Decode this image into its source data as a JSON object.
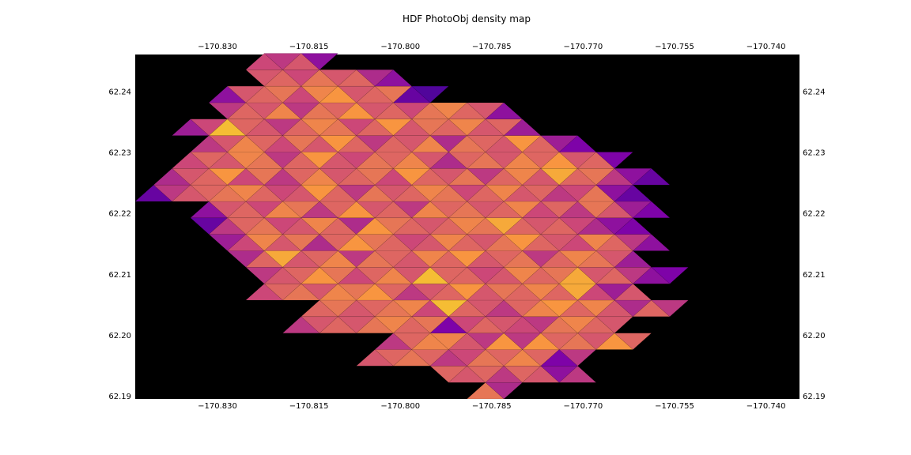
{
  "chart_data": {
    "type": "heatmap",
    "title": "HDF PhotoObj density map",
    "xlabel": "",
    "ylabel": "",
    "xlim": [
      -170.8435,
      -170.7345
    ],
    "ylim": [
      62.1895,
      62.246
    ],
    "x_ticks": [
      -170.83,
      -170.815,
      -170.8,
      -170.785,
      -170.77,
      -170.755,
      -170.74
    ],
    "x_tick_labels": [
      "−170.830",
      "−170.815",
      "−170.800",
      "−170.785",
      "−170.770",
      "−170.755",
      "−170.740"
    ],
    "y_ticks": [
      62.19,
      62.2,
      62.21,
      62.22,
      62.23,
      62.24
    ],
    "y_tick_labels": [
      "62.19",
      "62.20",
      "62.21",
      "62.22",
      "62.23",
      "62.24"
    ],
    "background": "#000000",
    "colormap": "plasma",
    "grid": false,
    "legend": "none",
    "mesh": {
      "description": "triangular mesh; each row pair of triangles with relative density 0-1",
      "x0": -170.8435,
      "dx": 0.00605,
      "y0": 62.1895,
      "dy": 0.0027,
      "rows": [
        {
          "start": 18,
          "values": [
            0.65,
            0.4
          ]
        },
        {
          "start": 15,
          "values": [
            0.6,
            0.55,
            0.6,
            0.45,
            0.6,
            0.55,
            0.3,
            0.45
          ]
        },
        {
          "start": 12,
          "values": [
            0.55,
            0.6,
            0.65,
            0.6,
            0.45,
            0.5,
            0.65,
            0.6,
            0.7,
            0.6,
            0.25,
            0.45
          ]
        },
        {
          "start": 12,
          "values": [
            0.45,
            0.6,
            0.7,
            0.7,
            0.55,
            0.45,
            0.75,
            0.45,
            0.75,
            0.6,
            0.65,
            0.55,
            0.75,
            0.6
          ]
        },
        {
          "start": 8,
          "values": [
            0.45,
            0.55,
            0.6,
            0.55,
            0.65,
            0.7,
            0.6,
            0.65,
            0.25,
            0.5,
            0.6,
            0.55,
            0.5,
            0.45,
            0.65,
            0.7,
            0.6,
            0.55
          ]
        },
        {
          "start": 8,
          "values": [
            0.6,
            0.65,
            0.55,
            0.6,
            0.65,
            0.7,
            0.5,
            0.85,
            0.6,
            0.55,
            0.45,
            0.6,
            0.7,
            0.75,
            0.6,
            0.7,
            0.55,
            0.4,
            0.6,
            0.45
          ]
        },
        {
          "start": 6,
          "values": [
            0.5,
            0.6,
            0.65,
            0.55,
            0.7,
            0.65,
            0.75,
            0.6,
            0.45,
            0.55,
            0.6,
            0.75,
            0.55,
            0.65,
            0.6,
            0.7,
            0.6,
            0.8,
            0.5,
            0.35,
            0.55
          ]
        },
        {
          "start": 5,
          "values": [
            0.45,
            0.55,
            0.6,
            0.75,
            0.65,
            0.5,
            0.6,
            0.7,
            0.55,
            0.85,
            0.6,
            0.6,
            0.5,
            0.55,
            0.7,
            0.6,
            0.65,
            0.8,
            0.55,
            0.6,
            0.45,
            0.3,
            0.25
          ]
        },
        {
          "start": 5,
          "values": [
            0.4,
            0.6,
            0.8,
            0.55,
            0.6,
            0.7,
            0.45,
            0.65,
            0.6,
            0.55,
            0.7,
            0.6,
            0.75,
            0.55,
            0.6,
            0.65,
            0.45,
            0.6,
            0.7,
            0.65,
            0.55,
            0.35
          ]
        },
        {
          "start": 3,
          "values": [
            0.35,
            0.5,
            0.7,
            0.55,
            0.65,
            0.4,
            0.6,
            0.75,
            0.65,
            0.6,
            0.5,
            0.55,
            0.7,
            0.6,
            0.55,
            0.65,
            0.75,
            0.6,
            0.55,
            0.5,
            0.7,
            0.6,
            0.45,
            0.3
          ]
        },
        {
          "start": 3,
          "values": [
            0.2,
            0.45,
            0.6,
            0.65,
            0.5,
            0.55,
            0.7,
            0.6,
            0.4,
            0.75,
            0.65,
            0.6,
            0.55,
            0.6,
            0.7,
            0.65,
            0.8,
            0.6,
            0.55,
            0.6,
            0.5,
            0.4,
            0.3,
            0.25
          ]
        },
        {
          "start": 2,
          "values": [
            0.3,
            0.55,
            0.6,
            0.5,
            0.7,
            0.65,
            0.45,
            0.6,
            0.75,
            0.55,
            0.6,
            0.45,
            0.7,
            0.6,
            0.65,
            0.55,
            0.6,
            0.7,
            0.5,
            0.6,
            0.45,
            0.65,
            0.55,
            0.35,
            0.25
          ]
        },
        {
          "start": 0,
          "values": [
            0.2,
            0.45,
            0.55,
            0.6,
            0.65,
            0.7,
            0.6,
            0.5,
            0.55,
            0.75,
            0.6,
            0.45,
            0.65,
            0.55,
            0.6,
            0.7,
            0.65,
            0.5,
            0.6,
            0.7,
            0.55,
            0.6,
            0.45,
            0.5,
            0.65,
            0.3,
            0.2
          ]
        },
        {
          "start": 0,
          "values": [
            0.4,
            0.55,
            0.6,
            0.75,
            0.5,
            0.65,
            0.45,
            0.6,
            0.7,
            0.55,
            0.6,
            0.65,
            0.5,
            0.75,
            0.6,
            0.55,
            0.65,
            0.45,
            0.6,
            0.7,
            0.55,
            0.8,
            0.6,
            0.65,
            0.45,
            0.3,
            0.2
          ]
        },
        {
          "start": 2,
          "values": [
            0.5,
            0.6,
            0.55,
            0.7,
            0.65,
            0.45,
            0.6,
            0.75,
            0.55,
            0.5,
            0.65,
            0.6,
            0.7,
            0.55,
            0.4,
            0.6,
            0.65,
            0.55,
            0.7,
            0.6,
            0.75,
            0.55,
            0.6,
            0.25
          ]
        },
        {
          "start": 2,
          "values": [
            0.45,
            0.55,
            0.7,
            0.6,
            0.5,
            0.65,
            0.55,
            0.75,
            0.6,
            0.45,
            0.6,
            0.55,
            0.7,
            0.4,
            0.65,
            0.6,
            0.55,
            0.75,
            0.6,
            0.35,
            0.25
          ]
        },
        {
          "start": 2,
          "values": [
            0.35,
            0.5,
            0.85,
            0.6,
            0.55,
            0.45,
            0.6,
            0.7,
            0.65,
            0.5,
            0.6,
            0.75,
            0.55,
            0.65,
            0.6,
            0.7,
            0.55,
            0.6,
            0.35
          ]
        },
        {
          "start": 3,
          "values": [
            0.45,
            0.6,
            0.55,
            0.7,
            0.45,
            0.65,
            0.6,
            0.75,
            0.55,
            0.6,
            0.5,
            0.65,
            0.7,
            0.6,
            0.55,
            0.3
          ]
        },
        {
          "start": 4,
          "values": [
            0.3,
            0.55,
            0.6,
            0.65,
            0.5,
            0.7,
            0.75,
            0.55,
            0.6,
            0.65,
            0.2,
            0.15
          ]
        },
        {
          "start": 5,
          "values": [
            0.55,
            0.6,
            0.5,
            0.65,
            0.55,
            0.6,
            0.4,
            0.3
          ]
        },
        {
          "start": 6,
          "values": [
            0.5,
            0.45,
            0.55,
            0.3
          ]
        }
      ]
    }
  }
}
